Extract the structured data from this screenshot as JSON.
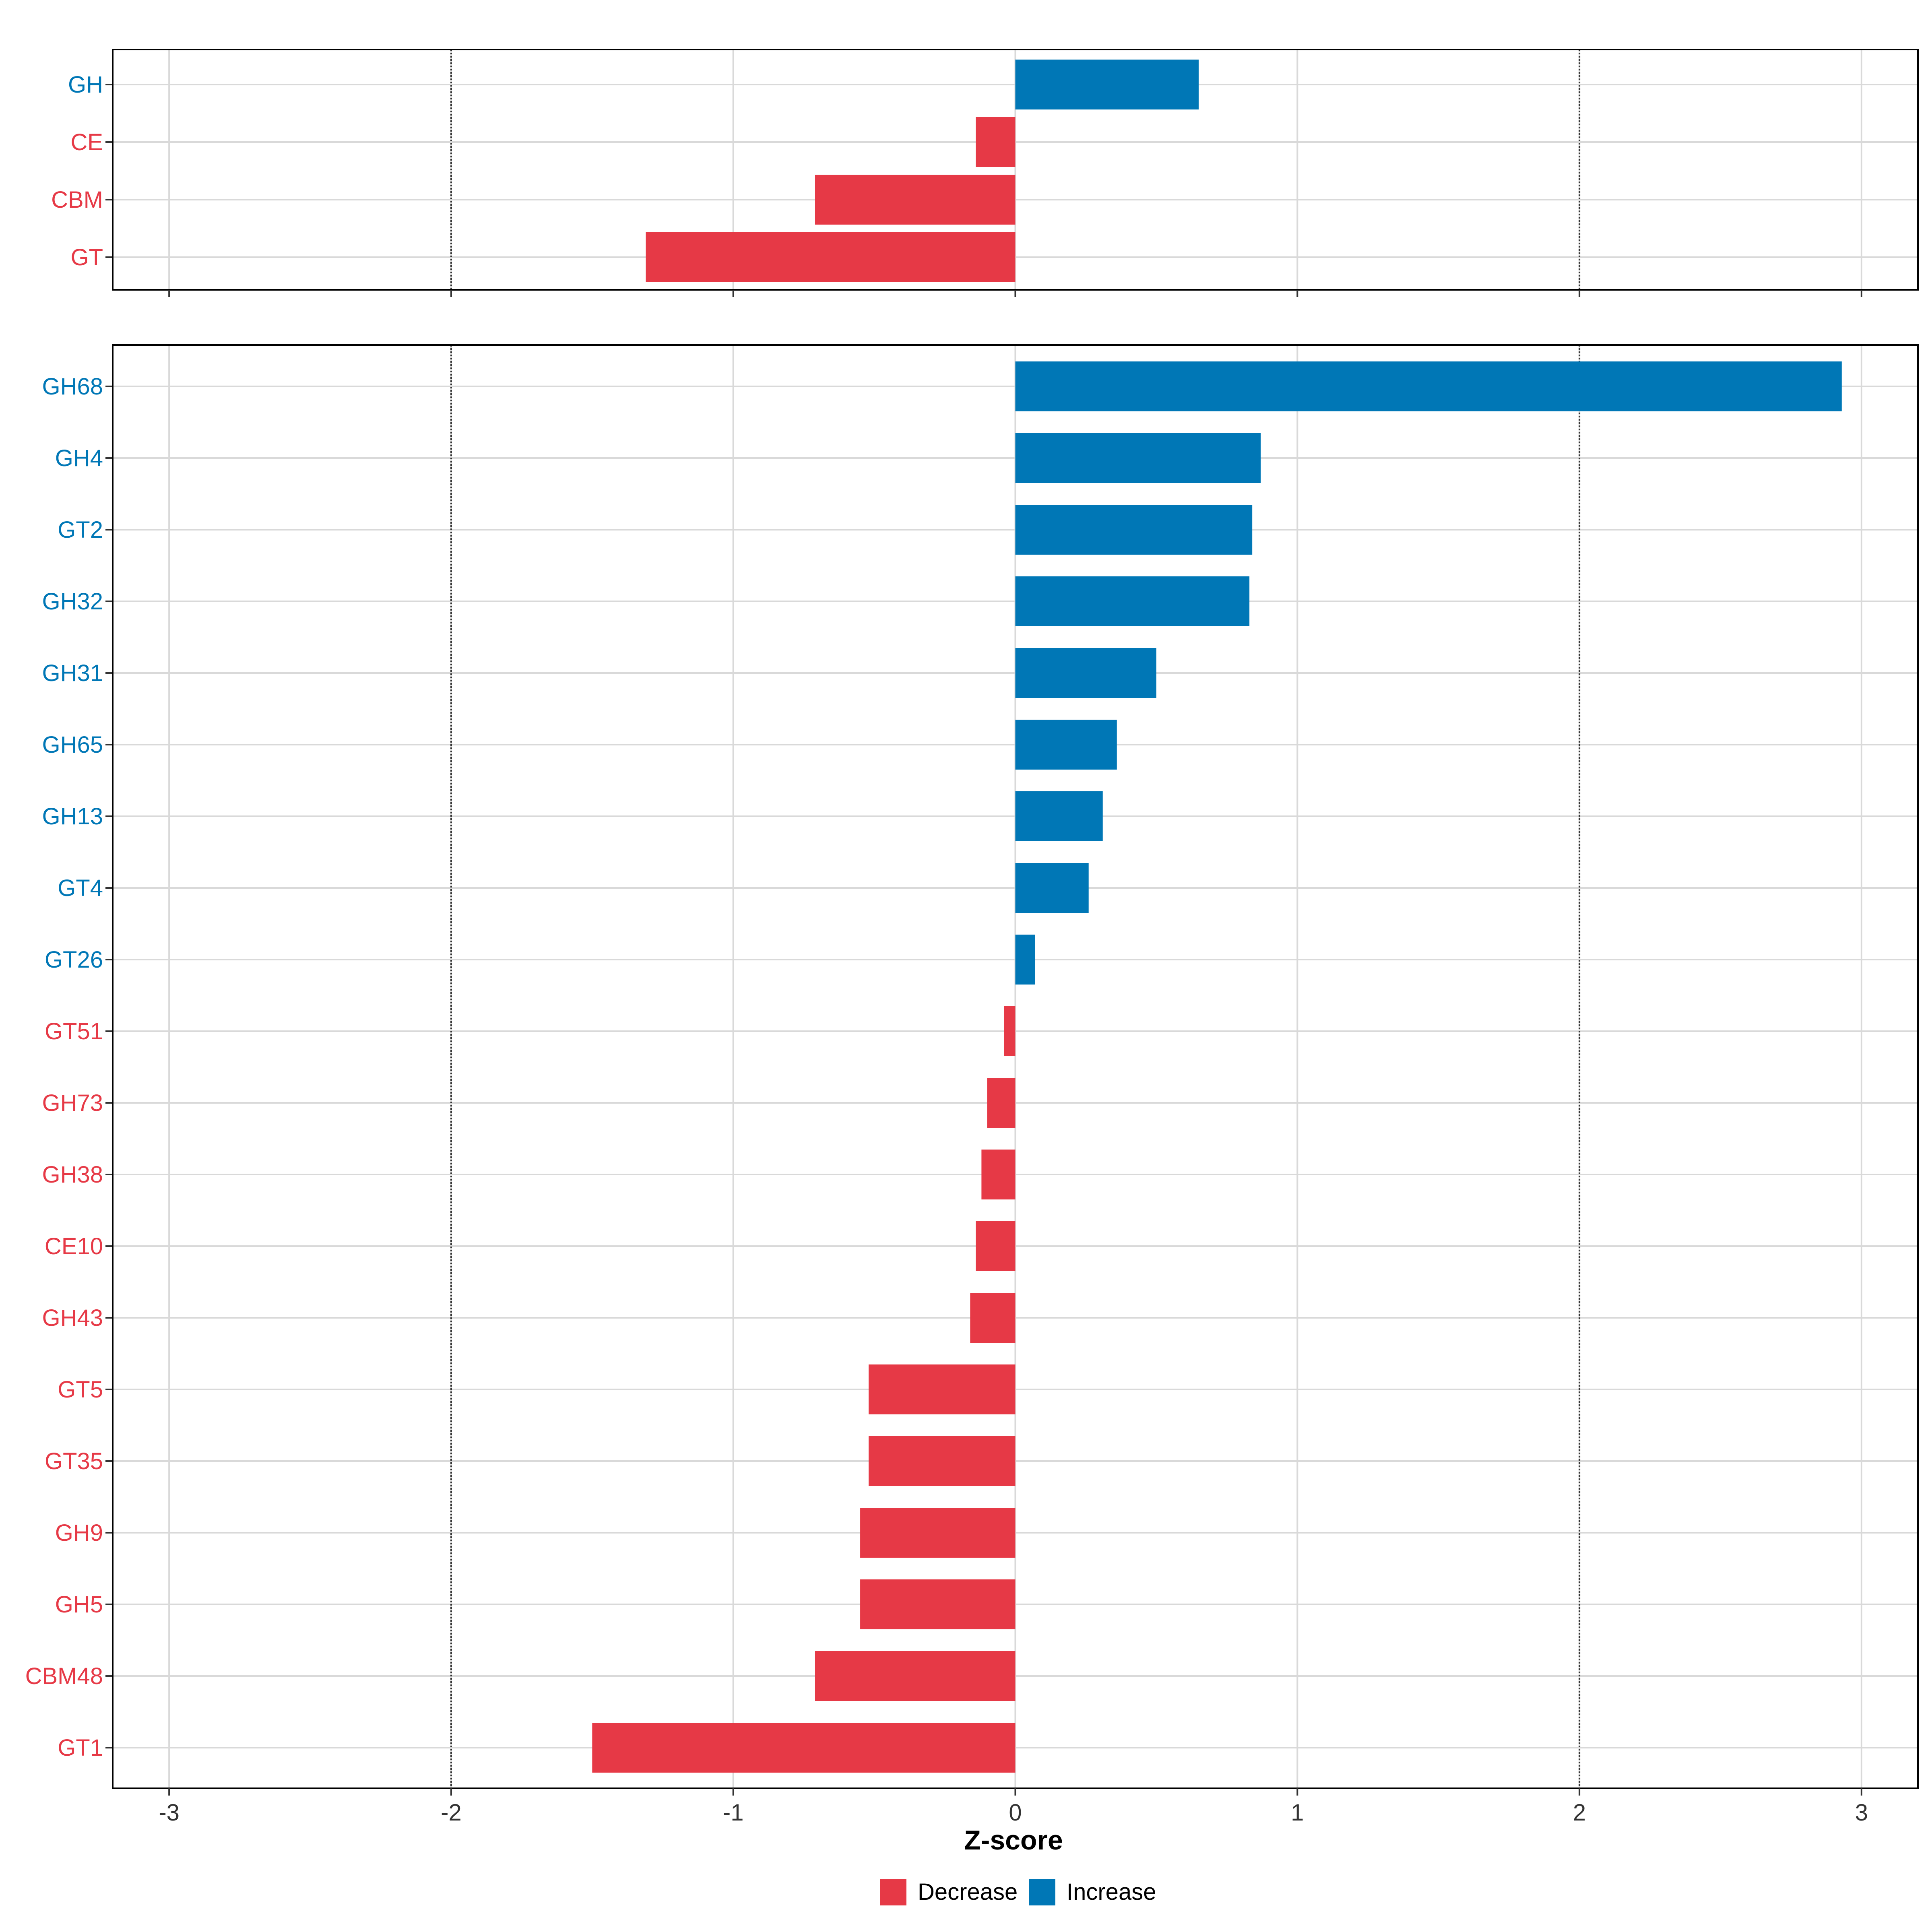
{
  "chart_data": [
    {
      "type": "bar",
      "orientation": "horizontal",
      "panel": "top",
      "categories": [
        "GH",
        "CE",
        "CBM",
        "GT"
      ],
      "values": [
        0.65,
        -0.14,
        -0.71,
        -1.31
      ],
      "xlim": [
        -3.2,
        3.2
      ],
      "xticks": [
        -3,
        -2,
        -1,
        0,
        1,
        2,
        3
      ],
      "reference_lines": [
        -2,
        2
      ],
      "grid": true
    },
    {
      "type": "bar",
      "orientation": "horizontal",
      "panel": "bottom",
      "categories": [
        "GH68",
        "GH4",
        "GT2",
        "GH32",
        "GH31",
        "GH65",
        "GH13",
        "GT4",
        "GT26",
        "GT51",
        "GH73",
        "GH38",
        "CE10",
        "GH43",
        "GT5",
        "GT35",
        "GH9",
        "GH5",
        "CBM48",
        "GT1"
      ],
      "values": [
        2.93,
        0.87,
        0.84,
        0.83,
        0.5,
        0.36,
        0.31,
        0.26,
        0.07,
        -0.04,
        -0.1,
        -0.12,
        -0.14,
        -0.16,
        -0.52,
        -0.52,
        -0.55,
        -0.55,
        -0.71,
        -1.5
      ],
      "xlim": [
        -3.2,
        3.2
      ],
      "xticks": [
        -3,
        -2,
        -1,
        0,
        1,
        2,
        3
      ],
      "xlabel": "Z-score",
      "reference_lines": [
        -2,
        2
      ],
      "grid": true
    }
  ],
  "legend": {
    "position": "bottom",
    "items": [
      {
        "label": "Decrease",
        "color": "#E63946"
      },
      {
        "label": "Increase",
        "color": "#0077B6"
      }
    ]
  },
  "colors": {
    "increase": "#0077B6",
    "decrease": "#E63946",
    "grid": "#D9D9D9"
  }
}
